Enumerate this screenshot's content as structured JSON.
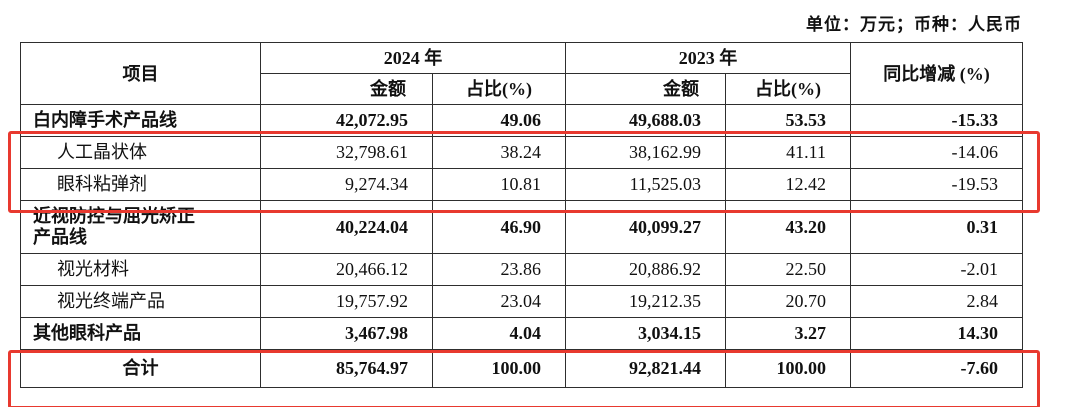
{
  "meta": {
    "unit_note": "单位：万元；币种：人民币"
  },
  "table": {
    "headers": {
      "item": "项目",
      "year_2024": "2024 年",
      "year_2023": "2023 年",
      "yoy": "同比增减 (%)",
      "amount": "金额",
      "proportion": "占比(%)"
    },
    "rows": [
      {
        "name": "白内障手术产品线",
        "values": [
          "42,072.95",
          "49.06",
          "49,688.03",
          "53.53",
          "-15.33"
        ]
      },
      {
        "name": "人工晶状体",
        "values": [
          "32,798.61",
          "38.24",
          "38,162.99",
          "41.11",
          "-14.06"
        ]
      },
      {
        "name": "眼科粘弹剂",
        "values": [
          "9,274.34",
          "10.81",
          "11,525.03",
          "12.42",
          "-19.53"
        ]
      },
      {
        "name": "近视防控与屈光矫正\n产品线",
        "values": [
          "40,224.04",
          "46.90",
          "40,099.27",
          "43.20",
          "0.31"
        ]
      },
      {
        "name": "视光材料",
        "values": [
          "20,466.12",
          "23.86",
          "20,886.92",
          "22.50",
          "-2.01"
        ]
      },
      {
        "name": "视光终端产品",
        "values": [
          "19,757.92",
          "23.04",
          "19,212.35",
          "20.70",
          "2.84"
        ]
      },
      {
        "name": "其他眼科产品",
        "values": [
          "3,467.98",
          "4.04",
          "3,034.15",
          "3.27",
          "14.30"
        ]
      },
      {
        "name": "合计",
        "values": [
          "85,764.97",
          "100.00",
          "92,821.44",
          "100.00",
          "-7.60"
        ]
      }
    ],
    "annotation_color": "#e8392f"
  }
}
